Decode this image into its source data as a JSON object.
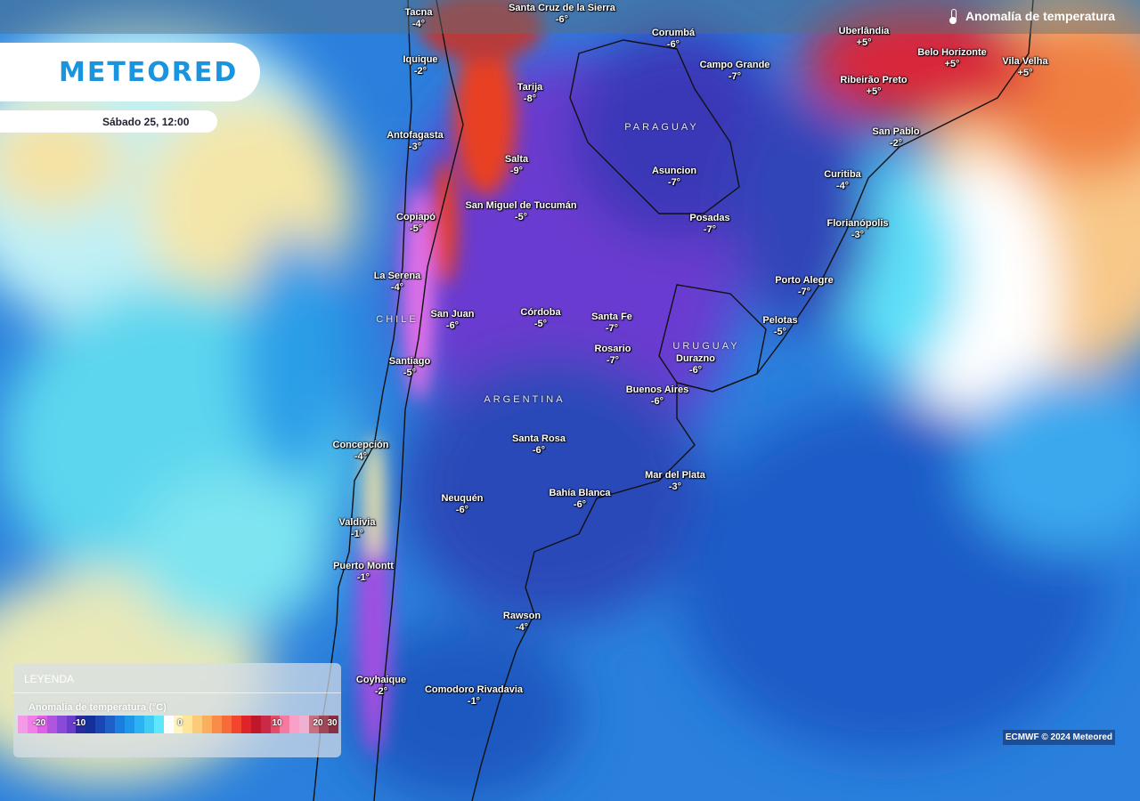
{
  "header": {
    "title": "Anomalía de temperatura",
    "icon": "thermometer-icon"
  },
  "brand": {
    "logo": "METEORED"
  },
  "timestamp": "Sábado 25, 12:00",
  "countries": [
    "PARAGUAY",
    "CHILE",
    "URUGUAY",
    "ARGENTINA"
  ],
  "cities": [
    {
      "name": "Tacna",
      "value": "-4°"
    },
    {
      "name": "Santa Cruz de la Sierra",
      "value": "-6°"
    },
    {
      "name": "Corumbá",
      "value": "-6°"
    },
    {
      "name": "Uberlândia",
      "value": "+5°"
    },
    {
      "name": "Iquique",
      "value": "-2°"
    },
    {
      "name": "Campo Grande",
      "value": "-7°"
    },
    {
      "name": "Belo Horizonte",
      "value": "+5°"
    },
    {
      "name": "Vila Velha",
      "value": "+5°"
    },
    {
      "name": "Ribeirão Preto",
      "value": "+5°"
    },
    {
      "name": "Tarija",
      "value": "-8°"
    },
    {
      "name": "Antofagasta",
      "value": "-3°"
    },
    {
      "name": "San Pablo",
      "value": "-2°"
    },
    {
      "name": "Salta",
      "value": "-9°"
    },
    {
      "name": "Asuncion",
      "value": "-7°"
    },
    {
      "name": "Curitiba",
      "value": "-4°"
    },
    {
      "name": "San Miguel de Tucumán",
      "value": "-5°"
    },
    {
      "name": "Copiapó",
      "value": "-5°"
    },
    {
      "name": "Posadas",
      "value": "-7°"
    },
    {
      "name": "Florianópolis",
      "value": "-3°"
    },
    {
      "name": "La Serena",
      "value": "-4°"
    },
    {
      "name": "Porto Alegre",
      "value": "-7°"
    },
    {
      "name": "San Juan",
      "value": "-6°"
    },
    {
      "name": "Córdoba",
      "value": "-5°"
    },
    {
      "name": "Santa Fe",
      "value": "-7°"
    },
    {
      "name": "Pelotas",
      "value": "-5°"
    },
    {
      "name": "Rosario",
      "value": "-7°"
    },
    {
      "name": "Durazno",
      "value": "-6°"
    },
    {
      "name": "Santiago",
      "value": "-5°"
    },
    {
      "name": "Buenos Aires",
      "value": "-6°"
    },
    {
      "name": "Santa Rosa",
      "value": "-6°"
    },
    {
      "name": "Concepción",
      "value": "-4°"
    },
    {
      "name": "Mar del Plata",
      "value": "-3°"
    },
    {
      "name": "Bahía Blanca",
      "value": "-6°"
    },
    {
      "name": "Neuquén",
      "value": "-6°"
    },
    {
      "name": "Valdivia",
      "value": "-1°"
    },
    {
      "name": "Puerto Montt",
      "value": "-1°"
    },
    {
      "name": "Rawson",
      "value": "-4°"
    },
    {
      "name": "Coyhaique",
      "value": "-2°"
    },
    {
      "name": "Comodoro Rivadavia",
      "value": "-1°"
    }
  ],
  "legend": {
    "heading": "LEYENDA",
    "title": "Anomalia de temperatura (°C)",
    "ticks": [
      "-20",
      "-10",
      "0",
      "10",
      "20",
      "30"
    ],
    "colors": [
      "#f39be6",
      "#f07fe8",
      "#e060e8",
      "#b055e0",
      "#8a4ad8",
      "#6a3ccc",
      "#2a2aa0",
      "#14309a",
      "#1a47b4",
      "#1e60c8",
      "#1a7ee0",
      "#1e96ea",
      "#2ab2f2",
      "#3ecbf6",
      "#5ee6fa",
      "#ffffff",
      "#fff6c0",
      "#fde59a",
      "#fccb7a",
      "#fbae5e",
      "#f98c48",
      "#f76a3a",
      "#f2452e",
      "#de2428",
      "#c0182a",
      "#c82a48",
      "#e24c64",
      "#f47aa0",
      "#f8a0c8",
      "#f0b0d0",
      "#c87080",
      "#a04858",
      "#8a3040"
    ]
  },
  "credit": "ECMWF © 2024 Meteored"
}
